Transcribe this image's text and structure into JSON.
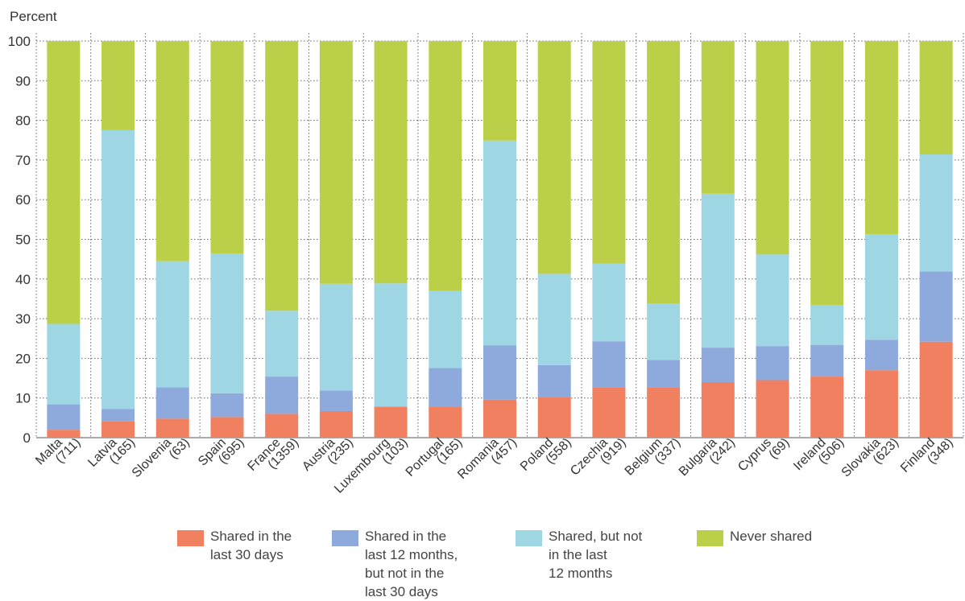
{
  "chart_data": {
    "type": "bar",
    "stacked": true,
    "ylabel": "Percent",
    "ylim": [
      0,
      100
    ],
    "yticks": [
      0,
      10,
      20,
      30,
      40,
      50,
      60,
      70,
      80,
      90,
      100
    ],
    "grid": true,
    "legend_position": "bottom",
    "categories": [
      "Malta",
      "Latvia",
      "Slovenia",
      "Spain",
      "France",
      "Austria",
      "Luxembourg",
      "Portugal",
      "Romania",
      "Poland",
      "Czechia",
      "Belgium",
      "Bulgaria",
      "Cyprus",
      "Ireland",
      "Slovakia",
      "Finland"
    ],
    "category_counts": [
      "(711)",
      "(165)",
      "(63)",
      "(695)",
      "(1359)",
      "(235)",
      "(103)",
      "(165)",
      "(457)",
      "(558)",
      "(919)",
      "(337)",
      "(242)",
      "(69)",
      "(506)",
      "(623)",
      "(348)"
    ],
    "series": [
      {
        "name": "Shared in the\nlast 30 days",
        "color": "#f08060",
        "values": [
          2.0,
          4.2,
          4.8,
          5.2,
          6.0,
          6.7,
          7.8,
          7.8,
          9.6,
          10.3,
          12.7,
          12.7,
          14.0,
          14.5,
          15.4,
          17.0,
          24.2
        ]
      },
      {
        "name": "Shared in the\nlast 12 months,\nbut not in the\nlast 30 days",
        "color": "#8eaadc",
        "values": [
          6.4,
          3.0,
          7.9,
          6.0,
          9.4,
          5.2,
          0.0,
          9.8,
          13.7,
          8.0,
          11.6,
          6.9,
          8.7,
          8.6,
          8.0,
          7.7,
          17.7
        ]
      },
      {
        "name": "Shared, but not\nin the last\n12 months",
        "color": "#9ed6e4",
        "values": [
          20.3,
          70.3,
          31.8,
          35.2,
          16.6,
          26.9,
          31.1,
          19.4,
          51.6,
          23.0,
          19.6,
          14.2,
          38.8,
          23.1,
          10.0,
          26.6,
          29.5
        ]
      },
      {
        "name": "Never shared",
        "color": "#bccf48",
        "values": [
          71.3,
          22.5,
          55.5,
          53.6,
          68.0,
          61.2,
          61.1,
          63.0,
          25.1,
          58.7,
          56.1,
          66.2,
          38.5,
          53.8,
          66.6,
          48.7,
          28.6
        ]
      }
    ]
  }
}
